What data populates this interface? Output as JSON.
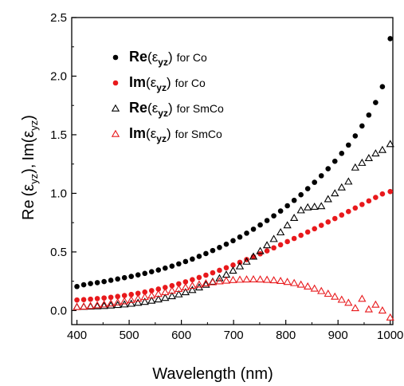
{
  "chart_data": {
    "type": "scatter",
    "xlabel": "Wavelength (nm)",
    "ylabel": {
      "main_1": "Re",
      "sub_1": "yz",
      "main_2": "Im",
      "sub_2": "yz",
      "greek": "ε"
    },
    "xlim": [
      390,
      1005
    ],
    "ylim": [
      -0.12,
      2.5
    ],
    "xticks": [
      400,
      500,
      600,
      700,
      800,
      900,
      1000
    ],
    "yticks": [
      0.0,
      0.5,
      1.0,
      1.5,
      2.0,
      2.5
    ],
    "xtick_labels": [
      "400",
      "500",
      "600",
      "700",
      "800",
      "900",
      "1000"
    ],
    "ytick_labels": [
      "0.0",
      "0.5",
      "1.0",
      "1.5",
      "2.0",
      "2.5"
    ],
    "grid": false,
    "legend_position": "top-left",
    "series": [
      {
        "legend": {
          "part": "Re",
          "greek": "ε",
          "sub": "yz",
          "suffix": "for Co"
        },
        "marker": "filled-circle",
        "color": "#000000",
        "x": [
          400,
          413,
          426,
          439,
          452,
          465,
          478,
          491,
          504,
          517,
          530,
          543,
          556,
          569,
          582,
          595,
          608,
          621,
          634,
          647,
          660,
          673,
          686,
          699,
          712,
          725,
          738,
          751,
          764,
          777,
          790,
          803,
          816,
          829,
          842,
          855,
          868,
          881,
          894,
          907,
          920,
          933,
          946,
          959,
          972,
          985,
          1000
        ],
        "y": [
          0.205,
          0.22,
          0.23,
          0.238,
          0.247,
          0.258,
          0.269,
          0.28,
          0.291,
          0.304,
          0.317,
          0.331,
          0.346,
          0.362,
          0.379,
          0.398,
          0.418,
          0.439,
          0.462,
          0.486,
          0.512,
          0.538,
          0.566,
          0.596,
          0.627,
          0.66,
          0.694,
          0.73,
          0.768,
          0.808,
          0.849,
          0.894,
          0.94,
          0.988,
          1.04,
          1.094,
          1.15,
          1.21,
          1.274,
          1.341,
          1.412,
          1.49,
          1.575,
          1.668,
          1.775,
          1.91,
          2.32
        ]
      },
      {
        "legend": {
          "part": "Im",
          "greek": "ε",
          "sub": "yz",
          "suffix": "for Co"
        },
        "marker": "filled-circle",
        "color": "#e8191c",
        "x": [
          400,
          413,
          426,
          439,
          452,
          465,
          478,
          491,
          504,
          517,
          530,
          543,
          556,
          569,
          582,
          595,
          608,
          621,
          634,
          647,
          660,
          673,
          686,
          699,
          712,
          725,
          738,
          751,
          764,
          777,
          790,
          803,
          816,
          829,
          842,
          855,
          868,
          881,
          894,
          907,
          920,
          933,
          946,
          959,
          972,
          985,
          1000
        ],
        "y": [
          0.09,
          0.093,
          0.097,
          0.102,
          0.107,
          0.113,
          0.12,
          0.128,
          0.137,
          0.147,
          0.158,
          0.17,
          0.183,
          0.197,
          0.212,
          0.228,
          0.245,
          0.263,
          0.282,
          0.302,
          0.322,
          0.343,
          0.365,
          0.388,
          0.411,
          0.435,
          0.459,
          0.484,
          0.509,
          0.535,
          0.561,
          0.588,
          0.615,
          0.642,
          0.67,
          0.698,
          0.727,
          0.756,
          0.785,
          0.815,
          0.845,
          0.875,
          0.905,
          0.935,
          0.965,
          0.995,
          1.015
        ]
      },
      {
        "legend": {
          "part": "Re",
          "greek": "ε",
          "sub": "yz",
          "suffix": "for SmCo"
        },
        "marker": "open-triangle",
        "color": "#000000",
        "x": [
          400,
          413,
          426,
          439,
          452,
          465,
          478,
          491,
          504,
          517,
          530,
          543,
          556,
          569,
          582,
          595,
          608,
          621,
          634,
          647,
          660,
          673,
          686,
          699,
          712,
          725,
          738,
          751,
          764,
          777,
          790,
          803,
          816,
          829,
          842,
          855,
          868,
          881,
          894,
          907,
          920,
          933,
          946,
          959,
          972,
          985,
          1000
        ],
        "y": [
          0.03,
          0.032,
          0.034,
          0.036,
          0.039,
          0.043,
          0.047,
          0.052,
          0.058,
          0.066,
          0.074,
          0.084,
          0.095,
          0.108,
          0.122,
          0.138,
          0.156,
          0.175,
          0.197,
          0.22,
          0.246,
          0.275,
          0.306,
          0.34,
          0.377,
          0.417,
          0.46,
          0.507,
          0.557,
          0.61,
          0.667,
          0.727,
          0.79,
          0.855,
          0.88,
          0.885,
          0.89,
          0.95,
          1.0,
          1.05,
          1.1,
          1.22,
          1.26,
          1.3,
          1.34,
          1.37,
          1.42
        ]
      },
      {
        "legend": {
          "part": "Im",
          "greek": "ε",
          "sub": "yz",
          "suffix": "for SmCo"
        },
        "marker": "open-triangle",
        "color": "#e8191c",
        "x": [
          400,
          413,
          426,
          439,
          452,
          465,
          478,
          491,
          504,
          517,
          530,
          543,
          556,
          569,
          582,
          595,
          608,
          621,
          634,
          647,
          660,
          673,
          686,
          699,
          712,
          725,
          738,
          751,
          764,
          777,
          790,
          803,
          816,
          829,
          842,
          855,
          868,
          881,
          894,
          907,
          920,
          933,
          946,
          959,
          972,
          985,
          1000
        ],
        "y": [
          0.03,
          0.034,
          0.039,
          0.045,
          0.052,
          0.06,
          0.069,
          0.079,
          0.09,
          0.102,
          0.115,
          0.128,
          0.142,
          0.156,
          0.17,
          0.184,
          0.198,
          0.211,
          0.222,
          0.232,
          0.241,
          0.249,
          0.255,
          0.26,
          0.263,
          0.265,
          0.266,
          0.265,
          0.262,
          0.258,
          0.252,
          0.244,
          0.234,
          0.221,
          0.205,
          0.187,
          0.166,
          0.143,
          0.118,
          0.092,
          0.066,
          0.02,
          0.1,
          0.01,
          0.05,
          0.0,
          -0.06
        ]
      }
    ]
  }
}
